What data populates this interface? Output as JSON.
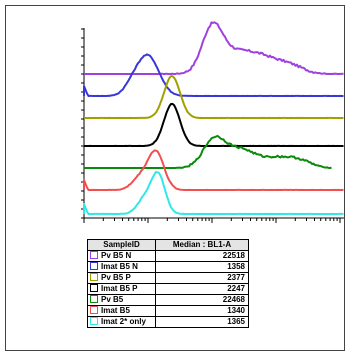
{
  "chart_data": {
    "type": "line",
    "subtype": "stacked histogram overlay",
    "x_scale": "log",
    "x_tick_labels_shown": false,
    "y_tick_labels_shown": false,
    "table_headers": {
      "sample": "SampleID",
      "median": "Median : BL1-A"
    },
    "series": [
      {
        "name": "Pv B5 N",
        "median": "22518",
        "color": "#a040e0",
        "median_value": 22518
      },
      {
        "name": "Imat B5 N",
        "median": "1358",
        "color": "#3838d8",
        "median_value": 1358
      },
      {
        "name": "Pv B5 P",
        "median": "2377",
        "color": "#a0a000",
        "median_value": 2377
      },
      {
        "name": "Imat B5 P",
        "median": "2247",
        "color": "#000000",
        "median_value": 2247
      },
      {
        "name": "Pv B5",
        "median": "22468",
        "color": "#0a8a0a",
        "median_value": 22468
      },
      {
        "name": "Imat B5",
        "median": "1340",
        "color": "#f05050",
        "median_value": 1340
      },
      {
        "name": "Imat 2* only",
        "median": "1365",
        "color": "#30e8e8",
        "median_value": 1365
      }
    ]
  }
}
